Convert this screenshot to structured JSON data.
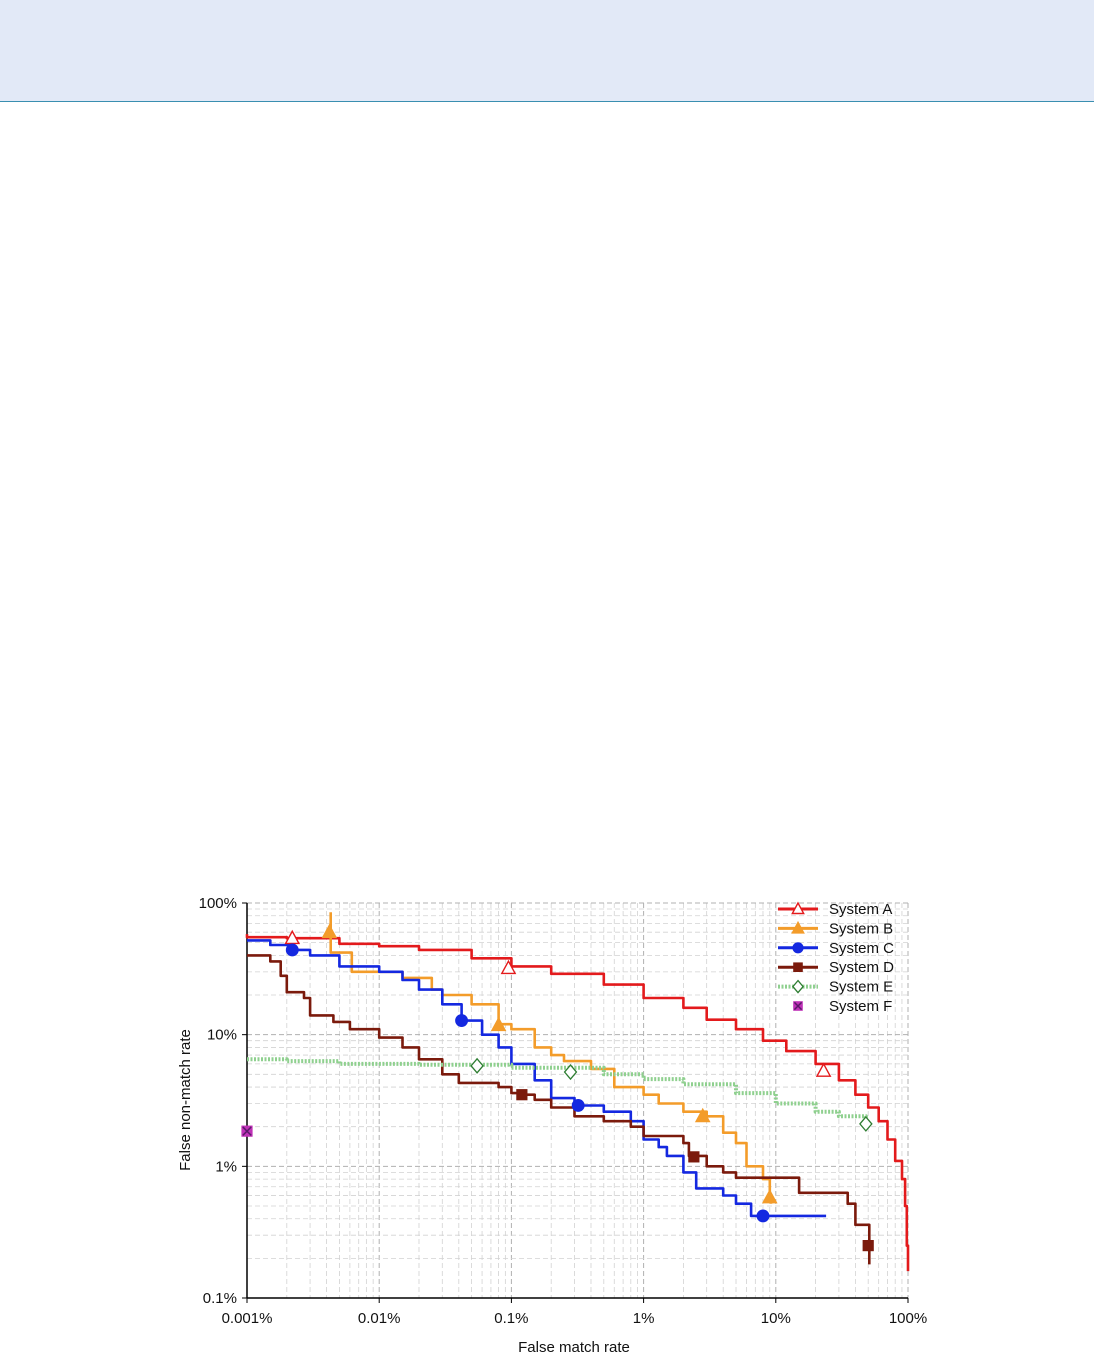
{
  "chart_data": {
    "type": "line",
    "xlabel": "False match rate",
    "ylabel": "False non-match rate",
    "x_scale": "log",
    "y_scale": "log",
    "xlim": [
      0.001,
      100
    ],
    "ylim": [
      0.1,
      100
    ],
    "x_ticks": [
      0.001,
      0.01,
      0.1,
      1,
      10,
      100
    ],
    "x_tick_labels": [
      "0.001%",
      "0.01%",
      "0.1%",
      "1%",
      "10%",
      "100%"
    ],
    "y_ticks": [
      0.1,
      1,
      10,
      100
    ],
    "y_tick_labels": [
      "0.1%",
      "1%",
      "10%",
      "100%"
    ],
    "grid": true,
    "legend_position": "top-right",
    "series": [
      {
        "name": "System A",
        "color": "#e31a1c",
        "marker": "triangle-open",
        "style": "solid",
        "points": [
          [
            0.001,
            58
          ],
          [
            0.001,
            55
          ],
          [
            0.002,
            54
          ],
          [
            0.005,
            49
          ],
          [
            0.01,
            47
          ],
          [
            0.02,
            44
          ],
          [
            0.05,
            38
          ],
          [
            0.1,
            33
          ],
          [
            0.2,
            29
          ],
          [
            0.5,
            24
          ],
          [
            1,
            19
          ],
          [
            2,
            16
          ],
          [
            3,
            13
          ],
          [
            5,
            11
          ],
          [
            8,
            9
          ],
          [
            12,
            7.5
          ],
          [
            20,
            6
          ],
          [
            30,
            4.5
          ],
          [
            40,
            3.5
          ],
          [
            50,
            2.8
          ],
          [
            60,
            2.2
          ],
          [
            70,
            1.6
          ],
          [
            80,
            1.1
          ],
          [
            90,
            0.8
          ],
          [
            95,
            0.5
          ],
          [
            98,
            0.25
          ],
          [
            100,
            0.16
          ]
        ],
        "markers": [
          [
            0.0022,
            54
          ],
          [
            0.095,
            32
          ],
          [
            23,
            5.3
          ]
        ]
      },
      {
        "name": "System B",
        "color": "#f39c2a",
        "marker": "triangle-filled",
        "style": "solid",
        "points": [
          [
            0.0043,
            85
          ],
          [
            0.0043,
            42
          ],
          [
            0.0062,
            35
          ],
          [
            0.0062,
            30
          ],
          [
            0.015,
            27
          ],
          [
            0.025,
            22
          ],
          [
            0.03,
            20
          ],
          [
            0.05,
            17
          ],
          [
            0.08,
            12
          ],
          [
            0.1,
            11
          ],
          [
            0.15,
            8
          ],
          [
            0.2,
            7
          ],
          [
            0.25,
            6.3
          ],
          [
            0.4,
            5.5
          ],
          [
            0.6,
            4
          ],
          [
            1,
            3.5
          ],
          [
            1.3,
            3
          ],
          [
            2,
            2.6
          ],
          [
            3,
            2.4
          ],
          [
            4,
            1.8
          ],
          [
            5,
            1.5
          ],
          [
            6,
            1.0
          ],
          [
            8,
            0.8
          ],
          [
            9,
            0.6
          ],
          [
            9.2,
            0.52
          ]
        ],
        "markers": [
          [
            0.0042,
            60
          ],
          [
            0.08,
            11.8
          ],
          [
            2.8,
            2.4
          ],
          [
            9,
            0.58
          ]
        ]
      },
      {
        "name": "System C",
        "color": "#1428e0",
        "marker": "circle-filled",
        "style": "solid",
        "points": [
          [
            0.001,
            52
          ],
          [
            0.0015,
            48
          ],
          [
            0.0022,
            44
          ],
          [
            0.003,
            40
          ],
          [
            0.005,
            33
          ],
          [
            0.01,
            30
          ],
          [
            0.015,
            26
          ],
          [
            0.02,
            22
          ],
          [
            0.03,
            17
          ],
          [
            0.042,
            12.8
          ],
          [
            0.06,
            10
          ],
          [
            0.08,
            8
          ],
          [
            0.1,
            6
          ],
          [
            0.15,
            4.5
          ],
          [
            0.2,
            3.3
          ],
          [
            0.3,
            2.9
          ],
          [
            0.5,
            2.6
          ],
          [
            0.8,
            2.2
          ],
          [
            1,
            1.6
          ],
          [
            1.3,
            1.4
          ],
          [
            1.5,
            1.2
          ],
          [
            2,
            0.9
          ],
          [
            2.5,
            0.68
          ],
          [
            4,
            0.6
          ],
          [
            5,
            0.52
          ],
          [
            6.5,
            0.42
          ],
          [
            10,
            0.42
          ],
          [
            24,
            0.42
          ]
        ],
        "markers": [
          [
            0.0022,
            44
          ],
          [
            0.042,
            12.8
          ],
          [
            0.32,
            2.9
          ],
          [
            8,
            0.42
          ]
        ]
      },
      {
        "name": "System D",
        "color": "#7b1a0c",
        "marker": "square-filled",
        "style": "solid",
        "points": [
          [
            0.001,
            40
          ],
          [
            0.0015,
            36
          ],
          [
            0.0018,
            28
          ],
          [
            0.002,
            21
          ],
          [
            0.0027,
            19
          ],
          [
            0.003,
            14
          ],
          [
            0.0045,
            12.5
          ],
          [
            0.006,
            11
          ],
          [
            0.01,
            9.5
          ],
          [
            0.015,
            8
          ],
          [
            0.02,
            6.5
          ],
          [
            0.03,
            5
          ],
          [
            0.04,
            4.3
          ],
          [
            0.08,
            4
          ],
          [
            0.1,
            3.6
          ],
          [
            0.12,
            3.5
          ],
          [
            0.15,
            3.2
          ],
          [
            0.2,
            2.8
          ],
          [
            0.3,
            2.4
          ],
          [
            0.5,
            2.2
          ],
          [
            0.8,
            2.0
          ],
          [
            1,
            1.7
          ],
          [
            2,
            1.5
          ],
          [
            2.2,
            1.2
          ],
          [
            3,
            1.0
          ],
          [
            4,
            0.9
          ],
          [
            5,
            0.82
          ],
          [
            13,
            0.82
          ],
          [
            15,
            0.63
          ],
          [
            28,
            0.63
          ],
          [
            35,
            0.52
          ],
          [
            40,
            0.36
          ],
          [
            48,
            0.36
          ],
          [
            51,
            0.25
          ],
          [
            51,
            0.18
          ]
        ],
        "markers": [
          [
            0.12,
            3.5
          ],
          [
            2.4,
            1.18
          ],
          [
            50,
            0.25
          ]
        ]
      },
      {
        "name": "System E",
        "color": "#8fd08f",
        "marker": "diamond-open",
        "style": "dotted-thick",
        "points": [
          [
            0.001,
            6.5
          ],
          [
            0.002,
            6.3
          ],
          [
            0.005,
            6.0
          ],
          [
            0.02,
            5.9
          ],
          [
            0.1,
            5.6
          ],
          [
            0.5,
            5.0
          ],
          [
            1,
            4.6
          ],
          [
            2,
            4.2
          ],
          [
            5,
            3.6
          ],
          [
            10,
            3.0
          ],
          [
            20,
            2.6
          ],
          [
            30,
            2.4
          ],
          [
            48,
            2.1
          ]
        ],
        "markers": [
          [
            0.055,
            5.8
          ],
          [
            0.28,
            5.2
          ],
          [
            48,
            2.1
          ]
        ]
      },
      {
        "name": "System F",
        "color": "#c032b8",
        "marker": "x-square",
        "style": "none",
        "points": [],
        "markers": [
          [
            0.001,
            1.85
          ]
        ]
      }
    ]
  }
}
